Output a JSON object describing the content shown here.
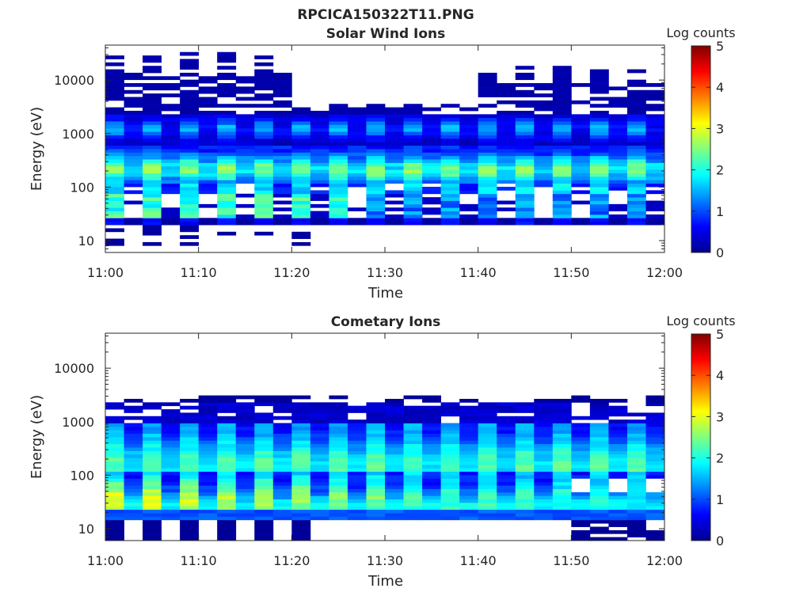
{
  "figure_title": "RPCICA150322T11.PNG",
  "chart_data": [
    {
      "type": "heatmap",
      "title": "Solar Wind Ions",
      "xlabel": "Time",
      "ylabel": "Energy (eV)",
      "y_scale": "log",
      "ylim": [
        6,
        45000
      ],
      "y_ticks": [
        10,
        100,
        1000,
        10000
      ],
      "y_tick_labels": [
        "10",
        "100",
        "1000",
        "10000"
      ],
      "xlim": [
        "11:00",
        "12:00"
      ],
      "x_tick_labels": [
        "11:00",
        "11:10",
        "11:20",
        "11:30",
        "11:40",
        "11:50",
        "12:00"
      ],
      "colorbar": {
        "label": "Log counts",
        "range": [
          0,
          5
        ],
        "ticks": [
          "0",
          "1",
          "2",
          "3",
          "4",
          "5"
        ],
        "colormap": "jet"
      },
      "grid": false,
      "pattern": "solar_wind",
      "time_bins": 30,
      "energy_bins": 60
    },
    {
      "type": "heatmap",
      "title": "Cometary Ions",
      "xlabel": "Time",
      "ylabel": "Energy (eV)",
      "y_scale": "log",
      "ylim": [
        6,
        45000
      ],
      "y_ticks": [
        10,
        100,
        1000,
        10000
      ],
      "y_tick_labels": [
        "10",
        "100",
        "1000",
        "10000"
      ],
      "xlim": [
        "11:00",
        "12:00"
      ],
      "x_tick_labels": [
        "11:00",
        "11:10",
        "11:20",
        "11:30",
        "11:40",
        "11:50",
        "12:00"
      ],
      "colorbar": {
        "label": "Log counts",
        "range": [
          0,
          5
        ],
        "ticks": [
          "0",
          "1",
          "2",
          "3",
          "4",
          "5"
        ],
        "colormap": "jet"
      },
      "grid": false,
      "pattern": "cometary",
      "time_bins": 30,
      "energy_bins": 60
    }
  ]
}
